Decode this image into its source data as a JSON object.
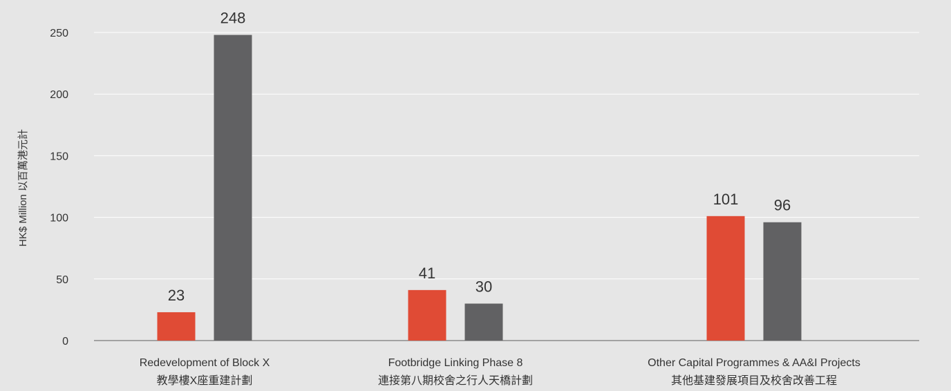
{
  "chart_data": {
    "type": "bar",
    "ylabel": "HK$ Million  以百萬港元計",
    "ylim": [
      0,
      250
    ],
    "yticks": [
      0,
      50,
      100,
      150,
      200,
      250
    ],
    "grid": true,
    "categories": [
      {
        "line1": "Redevelopment of Block X",
        "line2": "教學樓X座重建計劃"
      },
      {
        "line1": "Footbridge Linking Phase 8",
        "line2": "連接第八期校舍之行人天橋計劃"
      },
      {
        "line1": "Other Capital Programmes & AA&I Projects",
        "line2": "其他基建發展項目及校舍改善工程"
      }
    ],
    "series": [
      {
        "values": [
          23,
          41,
          101
        ],
        "color": "#e04b35"
      },
      {
        "values": [
          248,
          30,
          96
        ],
        "color": "#616163"
      }
    ]
  }
}
